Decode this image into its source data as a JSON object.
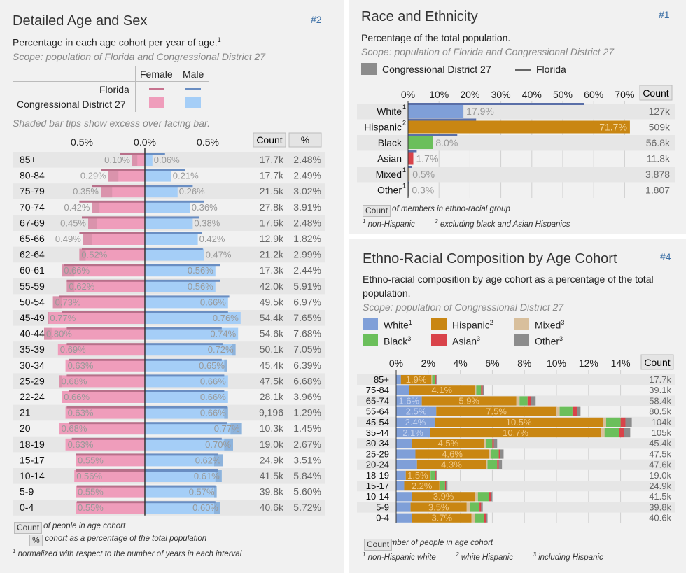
{
  "colors": {
    "female": "#ef9dbb",
    "female_dark": "#c98aa0",
    "male": "#a5cef7",
    "male_dark": "#7a9cc7",
    "white": "#7f9fd8",
    "hispanic": "#c98612",
    "black": "#6bbf5b",
    "asian": "#d9434a",
    "mixed": "#d8bf9c",
    "other": "#8c8c8c",
    "title_num": "#3a6ea5"
  },
  "panel_age_sex": {
    "title": "Detailed Age and Sex",
    "number": "#2",
    "subtitle": "Percentage in each age cohort per year of age.",
    "subtitle_sup": "1",
    "scope": "Scope: population of Florida and Congressional District 27",
    "legend": {
      "col_female": "Female",
      "col_male": "Male",
      "row_florida": "Florida",
      "row_district": "Congressional District 27"
    },
    "shaded_note": "Shaded bar tips show excess over facing bar.",
    "axis_labels": [
      "0.5%",
      "0.0%",
      "0.5%"
    ],
    "col_count": "Count",
    "col_pct": "%",
    "notes": {
      "count_box": "Count",
      "count_text": "number of people in age cohort",
      "pct_box": "%",
      "pct_text": "age cohort as a percentage of the total population",
      "sup1": "1",
      "norm_text": "normalized with respect to the number of years in each interval"
    }
  },
  "chart_data": [
    {
      "type": "bar",
      "title": "Detailed Age and Sex",
      "categories": [
        "85+",
        "80-84",
        "75-79",
        "70-74",
        "67-69",
        "65-66",
        "62-64",
        "60-61",
        "55-59",
        "50-54",
        "45-49",
        "40-44",
        "35-39",
        "30-34",
        "25-29",
        "22-24",
        "21",
        "20",
        "18-19",
        "15-17",
        "10-14",
        "5-9",
        "0-4"
      ],
      "series": [
        {
          "name": "Female",
          "values": [
            0.1,
            0.29,
            0.35,
            0.42,
            0.45,
            0.49,
            0.52,
            0.66,
            0.62,
            0.73,
            0.77,
            0.8,
            0.69,
            0.63,
            0.68,
            0.66,
            0.63,
            0.68,
            0.63,
            0.55,
            0.56,
            0.55,
            0.55
          ]
        },
        {
          "name": "Male",
          "values": [
            0.06,
            0.21,
            0.26,
            0.36,
            0.38,
            0.42,
            0.47,
            0.56,
            0.56,
            0.66,
            0.76,
            0.74,
            0.72,
            0.65,
            0.66,
            0.66,
            0.66,
            0.77,
            0.7,
            0.62,
            0.61,
            0.57,
            0.6
          ]
        }
      ],
      "female_labels": [
        "0.10%",
        "0.29%",
        "0.35%",
        "0.42%",
        "0.45%",
        "0.49%",
        "0.52%",
        "0.66%",
        "0.62%",
        "0.73%",
        "0.77%",
        "0.80%",
        "0.69%",
        "0.63%",
        "0.68%",
        "0.66%",
        "0.63%",
        "0.68%",
        "0.63%",
        "0.55%",
        "0.56%",
        "0.55%",
        "0.55%"
      ],
      "male_labels": [
        "0.06%",
        "0.21%",
        "0.26%",
        "0.36%",
        "0.38%",
        "0.42%",
        "0.47%",
        "0.56%",
        "0.56%",
        "0.66%",
        "0.76%",
        "0.74%",
        "0.72%",
        "0.65%",
        "0.66%",
        "0.66%",
        "0.66%",
        "0.77%",
        "0.70%",
        "0.62%",
        "0.61%",
        "0.57%",
        "0.60%"
      ],
      "counts": [
        "17.7k",
        "17.7k",
        "21.5k",
        "27.8k",
        "17.6k",
        "12.9k",
        "21.2k",
        "17.3k",
        "42.0k",
        "49.5k",
        "54.4k",
        "54.6k",
        "50.1k",
        "45.4k",
        "47.5k",
        "28.1k",
        "9,196",
        "10.3k",
        "19.0k",
        "24.9k",
        "41.5k",
        "39.8k",
        "40.6k"
      ],
      "percents": [
        "2.48%",
        "2.49%",
        "3.02%",
        "3.91%",
        "2.48%",
        "1.82%",
        "2.99%",
        "2.44%",
        "5.91%",
        "6.97%",
        "7.65%",
        "7.68%",
        "7.05%",
        "6.39%",
        "6.68%",
        "3.96%",
        "1.29%",
        "1.45%",
        "2.67%",
        "3.51%",
        "5.84%",
        "5.60%",
        "5.72%"
      ],
      "florida_female": [
        0.2,
        0.35,
        0.42,
        0.52,
        0.5,
        0.52,
        0.5,
        0.64,
        0.62,
        0.68,
        0.66,
        0.62,
        0.62,
        0.6,
        0.62,
        0.6,
        0.62,
        0.6,
        0.58,
        0.55,
        0.55,
        0.54,
        0.54
      ],
      "florida_male": [
        0.16,
        0.32,
        0.38,
        0.47,
        0.43,
        0.45,
        0.46,
        0.6,
        0.6,
        0.67,
        0.66,
        0.61,
        0.62,
        0.61,
        0.63,
        0.63,
        0.65,
        0.65,
        0.61,
        0.58,
        0.58,
        0.56,
        0.56
      ],
      "xlim": [
        -0.85,
        0.85
      ]
    },
    {
      "type": "bar",
      "title": "Race and Ethnicity",
      "categories": [
        "White",
        "Hispanic",
        "Black",
        "Asian",
        "Mixed",
        "Other"
      ],
      "category_sups": [
        "1",
        "2",
        "",
        "",
        "1",
        "1"
      ],
      "values": [
        17.9,
        71.7,
        8.0,
        1.7,
        0.5,
        0.3
      ],
      "value_labels": [
        "17.9%",
        "71.7%",
        "8.0%",
        "1.7%",
        "0.5%",
        "0.3%"
      ],
      "florida_values": [
        57.0,
        22.0,
        15.9,
        2.8,
        1.3,
        0.4
      ],
      "counts": [
        "127k",
        "509k",
        "56.8k",
        "11.8k",
        "3,878",
        "1,807"
      ],
      "ticks": [
        "0%",
        "10%",
        "20%",
        "30%",
        "40%",
        "50%",
        "60%",
        "70%"
      ],
      "xlim": [
        0,
        72
      ]
    },
    {
      "type": "bar",
      "title": "Ethno-Racial Composition by Age Cohort",
      "categories": [
        "85+",
        "75-84",
        "65-74",
        "55-64",
        "45-54",
        "35-44",
        "30-34",
        "25-29",
        "20-24",
        "18-19",
        "15-17",
        "10-14",
        "5-9",
        "0-4"
      ],
      "series": [
        {
          "name": "White",
          "values": [
            0.3,
            0.8,
            1.6,
            2.5,
            2.4,
            2.1,
            1.0,
            1.2,
            1.3,
            0.6,
            0.5,
            1.0,
            0.9,
            1.0
          ]
        },
        {
          "name": "Hispanic",
          "values": [
            1.9,
            4.1,
            5.9,
            7.5,
            10.5,
            10.7,
            4.5,
            4.6,
            4.3,
            1.5,
            2.2,
            3.9,
            3.5,
            3.7
          ]
        },
        {
          "name": "Mixed",
          "values": [
            0.05,
            0.1,
            0.2,
            0.2,
            0.2,
            0.2,
            0.1,
            0.1,
            0.1,
            0.05,
            0.05,
            0.2,
            0.2,
            0.2
          ]
        },
        {
          "name": "Black",
          "values": [
            0.2,
            0.3,
            0.5,
            0.8,
            0.9,
            0.9,
            0.4,
            0.5,
            0.6,
            0.3,
            0.3,
            0.7,
            0.6,
            0.6
          ]
        },
        {
          "name": "Asian",
          "values": [
            0.05,
            0.1,
            0.2,
            0.3,
            0.3,
            0.3,
            0.1,
            0.1,
            0.1,
            0.05,
            0.05,
            0.1,
            0.1,
            0.1
          ]
        },
        {
          "name": "Other",
          "values": [
            0.05,
            0.1,
            0.3,
            0.2,
            0.4,
            0.4,
            0.2,
            0.2,
            0.2,
            0.05,
            0.1,
            0.1,
            0.1,
            0.1
          ]
        }
      ],
      "white_labels": [
        "",
        "",
        "1.6%",
        "2.5%",
        "2.4%",
        "2.1%",
        "",
        "",
        "",
        "",
        "",
        "",
        "",
        ""
      ],
      "hispanic_labels": [
        "1.9%",
        "4.1%",
        "5.9%",
        "7.5%",
        "10.5%",
        "10.7%",
        "4.5%",
        "4.6%",
        "4.3%",
        "1.5%",
        "2.2%",
        "3.9%",
        "3.5%",
        "3.7%"
      ],
      "counts": [
        "17.7k",
        "39.1k",
        "58.4k",
        "80.5k",
        "104k",
        "105k",
        "45.4k",
        "47.5k",
        "47.6k",
        "19.0k",
        "24.9k",
        "41.5k",
        "39.8k",
        "40.6k"
      ],
      "ticks": [
        "0%",
        "2%",
        "4%",
        "6%",
        "8%",
        "10%",
        "12%",
        "14%"
      ],
      "xlim": [
        0,
        15
      ]
    }
  ],
  "panel_race": {
    "title": "Race and Ethnicity",
    "number": "#1",
    "subtitle": "Percentage of the total population.",
    "scope": "Scope: population of Florida and Congressional District 27",
    "legend_district": "Congressional District 27",
    "legend_florida": "Florida",
    "col_count": "Count",
    "notes": {
      "count_box": "Count",
      "count_text": "number of members in ethno-racial group",
      "sup1": "1",
      "text1": "non-Hispanic",
      "sup2": "2",
      "text2": "excluding black and Asian Hispanics"
    }
  },
  "panel_cohort": {
    "title": "Ethno-Racial Composition by Age Cohort",
    "number": "#4",
    "subtitle_line1": "Ethno-racial composition by age cohort as a percentage of the total",
    "subtitle_line2": "population.",
    "scope": "Scope: population of Congressional District 27",
    "legend": [
      {
        "label": "White",
        "sup": "1",
        "color": "white"
      },
      {
        "label": "Hispanic",
        "sup": "2",
        "color": "hispanic"
      },
      {
        "label": "Mixed",
        "sup": "3",
        "color": "mixed"
      },
      {
        "label": "Black",
        "sup": "3",
        "color": "black"
      },
      {
        "label": "Asian",
        "sup": "3",
        "color": "asian"
      },
      {
        "label": "Other",
        "sup": "3",
        "color": "other"
      }
    ],
    "col_count": "Count",
    "notes": {
      "count_box": "Count",
      "count_text": "total number of people in age cohort",
      "sup1": "1",
      "text1": "non-Hispanic white",
      "sup2": "2",
      "text2": "white Hispanic",
      "sup3": "3",
      "text3": "including Hispanic"
    }
  }
}
